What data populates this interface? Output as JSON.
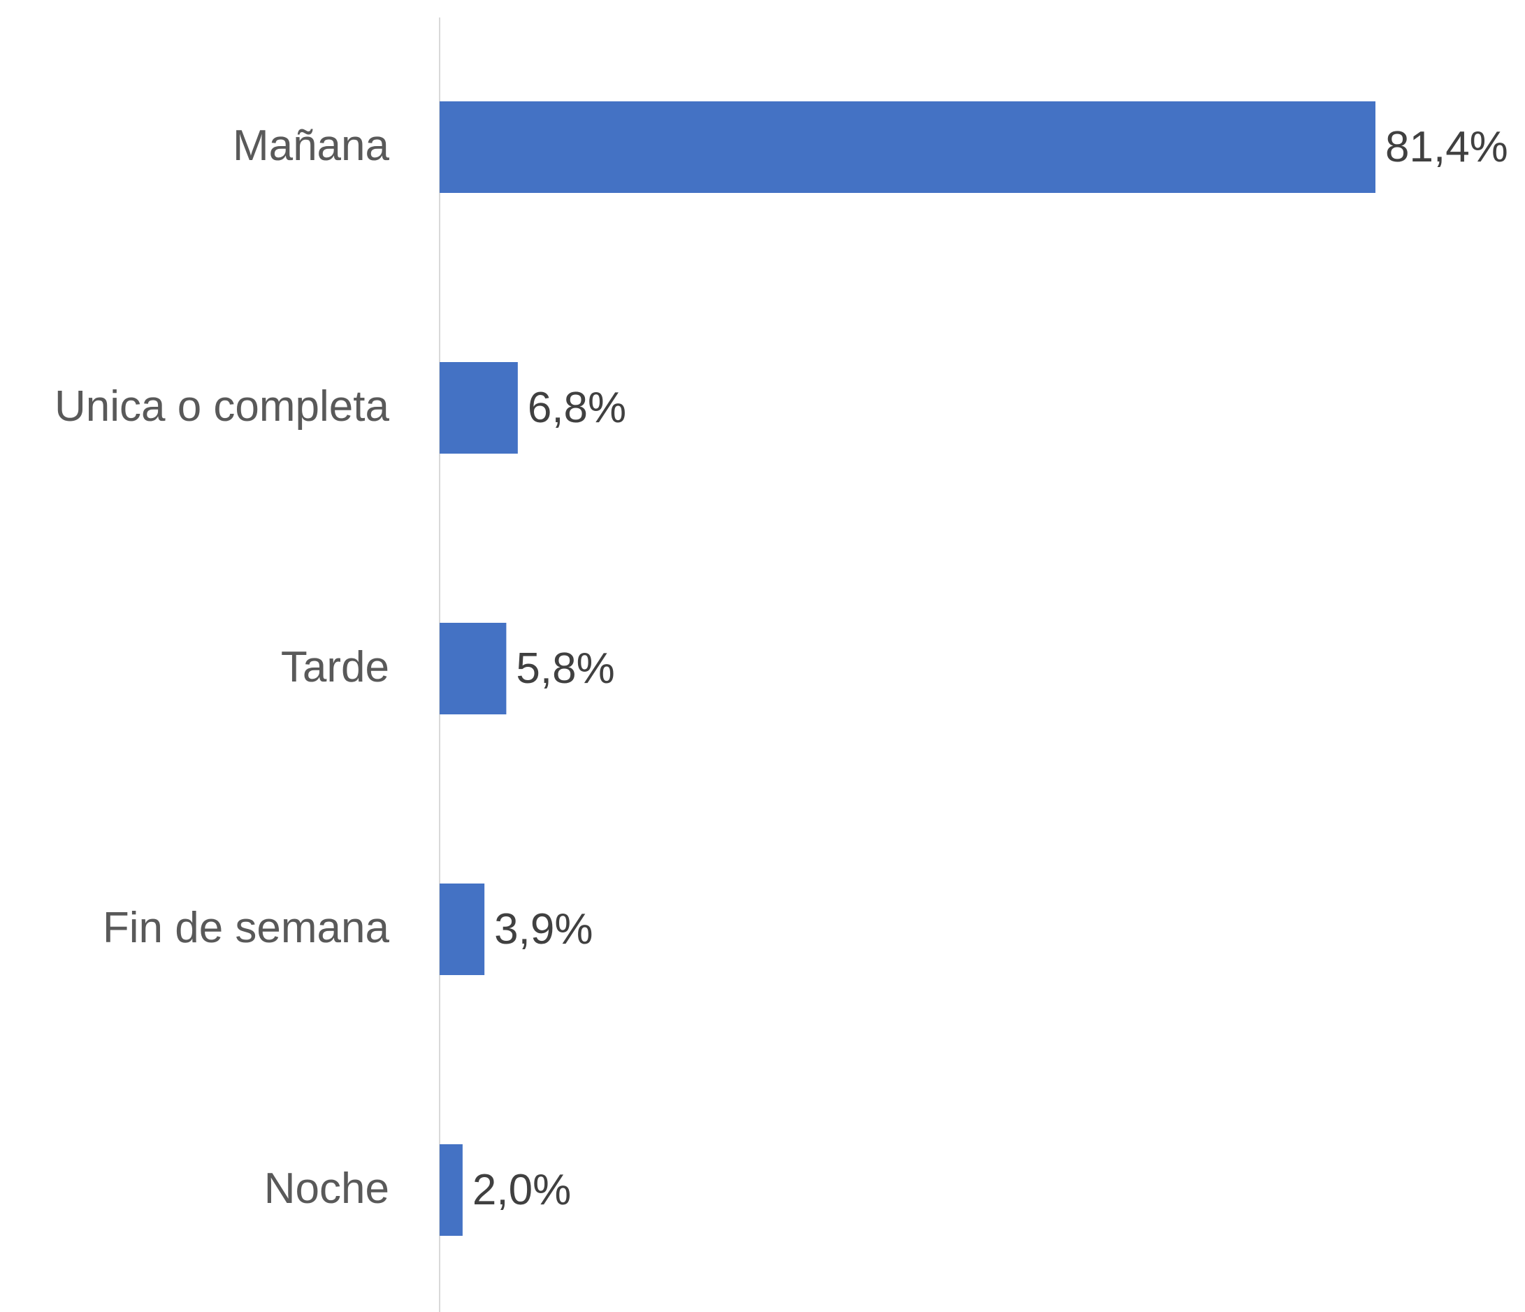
{
  "chart_data": {
    "type": "hbar",
    "categories": [
      "Mañana",
      "Unica o completa",
      "Tarde",
      "Fin de semana",
      "Noche"
    ],
    "values": [
      81.4,
      6.8,
      5.8,
      3.9,
      2.0
    ],
    "value_labels": [
      "81,4%",
      "6,8%",
      "5,8%",
      "3,9%",
      "2,0%"
    ],
    "color": "#4472c4"
  }
}
